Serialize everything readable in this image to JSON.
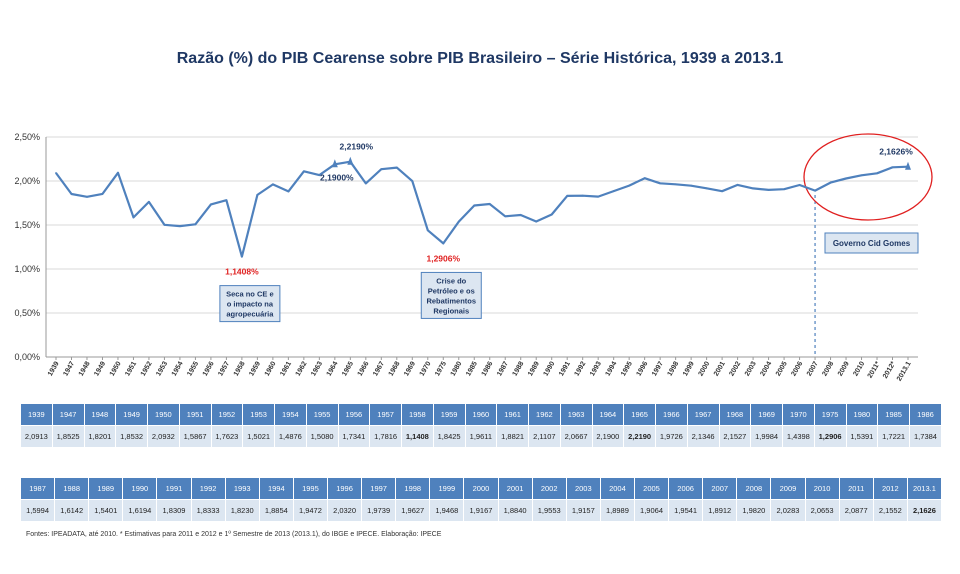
{
  "title": "Razão (%) do PIB Cearense sobre PIB Brasileiro – Série Histórica, 1939 a 2013.1",
  "footnote": "Fontes: IPEADATA, até 2010. * Estimativas para 2011 e 2012 e 1º Semestre de 2013 (2013.1), do IBGE e IPECE. Elaboração: IPECE",
  "colors": {
    "line": "#4f81bd",
    "header": "#4f81bd",
    "cell": "#dce6f1",
    "highlight": "#e02020",
    "circle": "#e02020",
    "vline": "#4f81bd"
  },
  "chart_data": {
    "type": "line",
    "title": "Razão (%) do PIB Cearense sobre PIB Brasileiro – Série Histórica, 1939 a 2013.1",
    "ylim": [
      0,
      2.5
    ],
    "yticks": [
      "0,00%",
      "0,50%",
      "1,00%",
      "1,50%",
      "2,00%",
      "2,50%"
    ],
    "grid": true,
    "categories": [
      "1939",
      "1947",
      "1948",
      "1949",
      "1950",
      "1951",
      "1952",
      "1953",
      "1954",
      "1955",
      "1956",
      "1957",
      "1958",
      "1959",
      "1960",
      "1961",
      "1962",
      "1963",
      "1964",
      "1965",
      "1966",
      "1967",
      "1968",
      "1969",
      "1970",
      "1975",
      "1980",
      "1985",
      "1986",
      "1987",
      "1988",
      "1989",
      "1990",
      "1991",
      "1992",
      "1993",
      "1994",
      "1995",
      "1996",
      "1997",
      "1998",
      "1999",
      "2000",
      "2001",
      "2002",
      "2003",
      "2004",
      "2005",
      "2006",
      "2007",
      "2008",
      "2009",
      "2010",
      "2011*",
      "2012*",
      "2013.1"
    ],
    "values": [
      2.0913,
      1.8525,
      1.8201,
      1.8532,
      2.0932,
      1.5867,
      1.7623,
      1.5021,
      1.4876,
      1.508,
      1.7341,
      1.7816,
      1.1408,
      1.8425,
      1.9611,
      1.8821,
      2.1107,
      2.0667,
      2.19,
      2.219,
      1.9726,
      2.1346,
      2.1527,
      1.9984,
      1.4398,
      1.2906,
      1.5391,
      1.7221,
      1.7384,
      1.5994,
      1.6142,
      1.5401,
      1.6194,
      1.8309,
      1.8333,
      1.823,
      1.8854,
      1.9472,
      2.032,
      1.9739,
      1.9627,
      1.9468,
      1.9167,
      1.884,
      1.9553,
      1.9157,
      1.8989,
      1.9064,
      1.9541,
      1.8912,
      1.982,
      2.0283,
      2.0653,
      2.0877,
      2.1552,
      2.1626
    ],
    "annotations": [
      {
        "index": 12,
        "label": "1,1408%",
        "color": "#e02020",
        "position": "below",
        "note": [
          "Seca no CE e",
          "o impacto na",
          "agropecuária"
        ]
      },
      {
        "index": 18,
        "label": "2,1900%",
        "position": "below"
      },
      {
        "index": 19,
        "label": "2,2190%",
        "position": "above"
      },
      {
        "index": 25,
        "label": "1,2906%",
        "color": "#e02020",
        "position": "below",
        "note": [
          "Crise do",
          "Petróleo e os",
          "Rebatimentos",
          "Regionais"
        ]
      },
      {
        "index": 55,
        "label": "2,1626%",
        "position": "above"
      }
    ],
    "marker": {
      "from_index": 49,
      "label": "Governo Cid Gomes"
    }
  },
  "table": {
    "row1": {
      "years": [
        "1939",
        "1947",
        "1948",
        "1949",
        "1950",
        "1951",
        "1952",
        "1953",
        "1954",
        "1955",
        "1956",
        "1957",
        "1958",
        "1959",
        "1960",
        "1961",
        "1962",
        "1963",
        "1964",
        "1965",
        "1966",
        "1967",
        "1968",
        "1969",
        "1970",
        "1975",
        "1980",
        "1985",
        "1986"
      ],
      "values": [
        "2,0913",
        "1,8525",
        "1,8201",
        "1,8532",
        "2,0932",
        "1,5867",
        "1,7623",
        "1,5021",
        "1,4876",
        "1,5080",
        "1,7341",
        "1,7816",
        "1,1408",
        "1,8425",
        "1,9611",
        "1,8821",
        "2,1107",
        "2,0667",
        "2,1900",
        "2,2190",
        "1,9726",
        "2,1346",
        "2,1527",
        "1,9984",
        "1,4398",
        "1,2906",
        "1,5391",
        "1,7221",
        "1,7384"
      ]
    },
    "row2": {
      "years": [
        "1987",
        "1988",
        "1989",
        "1990",
        "1991",
        "1992",
        "1993",
        "1994",
        "1995",
        "1996",
        "1997",
        "1998",
        "1999",
        "2000",
        "2001",
        "2002",
        "2003",
        "2004",
        "2005",
        "2006",
        "2007",
        "2008",
        "2009",
        "2010",
        "2011",
        "2012",
        "2013.1"
      ],
      "values": [
        "1,5994",
        "1,6142",
        "1,5401",
        "1,6194",
        "1,8309",
        "1,8333",
        "1,8230",
        "1,8854",
        "1,9472",
        "2,0320",
        "1,9739",
        "1,9627",
        "1,9468",
        "1,9167",
        "1,8840",
        "1,9553",
        "1,9157",
        "1,8989",
        "1,9064",
        "1,9541",
        "1,8912",
        "1,9820",
        "2,0283",
        "2,0653",
        "2,0877",
        "2,1552",
        "2,1626"
      ]
    }
  }
}
